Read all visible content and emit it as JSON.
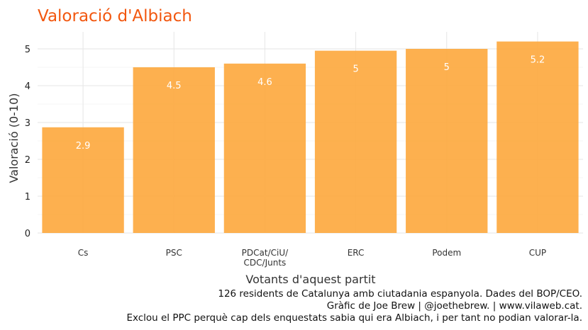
{
  "chart_data": {
    "type": "bar",
    "title": "Valoració d'Albiach",
    "xlabel": "Votants d'aquest partit",
    "ylabel": "Valoració (0-10)",
    "categories": [
      "Cs",
      "PSC",
      "PDCat/CiU/\nCDC/Junts",
      "ERC",
      "Podem",
      "CUP"
    ],
    "values": [
      2.87,
      4.5,
      4.6,
      4.95,
      5.0,
      5.2
    ],
    "data_labels": [
      "2.9",
      "4.5",
      "4.6",
      "5",
      "5",
      "5.2"
    ],
    "yticks": [
      0,
      1,
      2,
      3,
      4,
      5
    ],
    "ylim": [
      0,
      5.25
    ],
    "bar_color": "#fda73c",
    "title_color": "#f2570f",
    "grid": true,
    "legend": "none"
  },
  "caption": [
    "126 residents de Catalunya amb ciutadania espanyola. Dades del BOP/CEO.",
    "Gràfic de Joe Brew | @joethebrew. |  www.vilaweb.cat.",
    "Exclou el PPC perquè cap dels enquestats sabia qui era Albiach, i per tant no podian valorar-la."
  ]
}
